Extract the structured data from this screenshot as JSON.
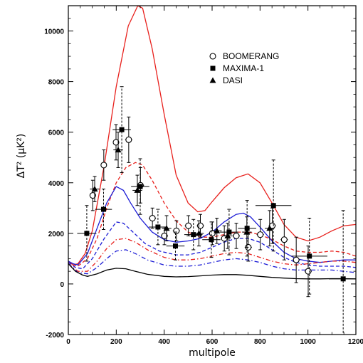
{
  "chart_data": {
    "type": "scatter",
    "xlabel": "multipole",
    "ylabel": "ΔT² (μK²)",
    "xlim": [
      0,
      1200
    ],
    "ylim": [
      -2000,
      11000
    ],
    "x_ticks": [
      0,
      200,
      400,
      600,
      800,
      1000,
      1200
    ],
    "y_ticks": [
      -2000,
      0,
      2000,
      4000,
      6000,
      8000,
      10000
    ],
    "x_tick_labels": [
      "0",
      "200",
      "400",
      "600",
      "800",
      "1000",
      "1200"
    ],
    "y_tick_labels": [
      "-2000",
      "0",
      "2000",
      "4000",
      "6000",
      "8000",
      "10000"
    ],
    "grid": false,
    "legend_position": "top-right",
    "legend": [
      {
        "label": "BOOMERANG",
        "marker": "open-circle"
      },
      {
        "label": "MAXIMA-1",
        "marker": "filled-square"
      },
      {
        "label": "DASI",
        "marker": "filled-triangle"
      }
    ],
    "data_series": [
      {
        "marker": "open-circle",
        "points": [
          {
            "x": 102,
            "y": 3500,
            "xerr": 12,
            "yerr": 600
          },
          {
            "x": 148,
            "y": 4700,
            "xerr": 12,
            "yerr": 600
          },
          {
            "x": 199,
            "y": 5600,
            "xerr": 12,
            "yerr": 700
          },
          {
            "x": 252,
            "y": 5700,
            "xerr": 15,
            "yerr": 900
          },
          {
            "x": 301,
            "y": 3900,
            "xerr": 15,
            "yerr": 700
          },
          {
            "x": 351,
            "y": 2600,
            "xerr": 15,
            "yerr": 400
          },
          {
            "x": 401,
            "y": 1900,
            "xerr": 15,
            "yerr": 350
          },
          {
            "x": 451,
            "y": 2100,
            "xerr": 15,
            "yerr": 400
          },
          {
            "x": 501,
            "y": 2300,
            "xerr": 15,
            "yerr": 400
          },
          {
            "x": 551,
            "y": 2300,
            "xerr": 15,
            "yerr": 450
          },
          {
            "x": 601,
            "y": 2000,
            "xerr": 15,
            "yerr": 450
          },
          {
            "x": 651,
            "y": 1800,
            "xerr": 15,
            "yerr": 500
          },
          {
            "x": 701,
            "y": 1900,
            "xerr": 15,
            "yerr": 500
          },
          {
            "x": 751,
            "y": 1450,
            "xerr": 15,
            "yerr": 550
          },
          {
            "x": 801,
            "y": 1950,
            "xerr": 15,
            "yerr": 600
          },
          {
            "x": 851,
            "y": 2300,
            "xerr": 15,
            "yerr": 700
          },
          {
            "x": 901,
            "y": 1750,
            "xerr": 15,
            "yerr": 800
          },
          {
            "x": 951,
            "y": 950,
            "xerr": 15,
            "yerr": 900
          },
          {
            "x": 1001,
            "y": 500,
            "xerr": 15,
            "yerr": 1000
          }
        ]
      },
      {
        "marker": "filled-square",
        "points": [
          {
            "x": 77,
            "y": 2000,
            "xerr": 40,
            "yerr": 1100
          },
          {
            "x": 147,
            "y": 2950,
            "xerr": 35,
            "yerr": 800
          },
          {
            "x": 223,
            "y": 6100,
            "xerr": 38,
            "yerr": 1700
          },
          {
            "x": 300,
            "y": 3850,
            "xerr": 38,
            "yerr": 1100
          },
          {
            "x": 374,
            "y": 2250,
            "xerr": 38,
            "yerr": 700
          },
          {
            "x": 447,
            "y": 1500,
            "xerr": 38,
            "yerr": 550
          },
          {
            "x": 522,
            "y": 1950,
            "xerr": 38,
            "yerr": 600
          },
          {
            "x": 597,
            "y": 1750,
            "xerr": 38,
            "yerr": 700
          },
          {
            "x": 671,
            "y": 2050,
            "xerr": 38,
            "yerr": 900
          },
          {
            "x": 746,
            "y": 2200,
            "xerr": 38,
            "yerr": 1100
          },
          {
            "x": 856,
            "y": 3100,
            "xerr": 75,
            "yerr": 1800
          },
          {
            "x": 1006,
            "y": 1100,
            "xerr": 75,
            "yerr": 1500
          },
          {
            "x": 1147,
            "y": 200,
            "xerr": 60,
            "yerr": 2700
          }
        ]
      },
      {
        "marker": "filled-triangle",
        "points": [
          {
            "x": 110,
            "y": 3750,
            "xerr": 20,
            "yerr": 500
          },
          {
            "x": 208,
            "y": 5300,
            "xerr": 20,
            "yerr": 700
          },
          {
            "x": 288,
            "y": 3700,
            "xerr": 20,
            "yerr": 600
          },
          {
            "x": 410,
            "y": 2200,
            "xerr": 20,
            "yerr": 500
          },
          {
            "x": 545,
            "y": 2000,
            "xerr": 20,
            "yerr": 500
          },
          {
            "x": 620,
            "y": 2100,
            "xerr": 20,
            "yerr": 500
          },
          {
            "x": 665,
            "y": 1900,
            "xerr": 20,
            "yerr": 500
          },
          {
            "x": 745,
            "y": 2050,
            "xerr": 20,
            "yerr": 600
          },
          {
            "x": 840,
            "y": 2200,
            "xerr": 20,
            "yerr": 700
          }
        ]
      }
    ],
    "curves": [
      {
        "color": "#e8201c",
        "dash": "solid",
        "points": [
          [
            0,
            900
          ],
          [
            20,
            750
          ],
          [
            40,
            800
          ],
          [
            70,
            1200
          ],
          [
            100,
            2100
          ],
          [
            150,
            4700
          ],
          [
            200,
            7800
          ],
          [
            250,
            10200
          ],
          [
            290,
            11000
          ],
          [
            310,
            10900
          ],
          [
            350,
            9300
          ],
          [
            400,
            6700
          ],
          [
            450,
            4300
          ],
          [
            500,
            3200
          ],
          [
            540,
            2850
          ],
          [
            570,
            2900
          ],
          [
            600,
            3250
          ],
          [
            650,
            3800
          ],
          [
            700,
            4200
          ],
          [
            750,
            4350
          ],
          [
            800,
            4000
          ],
          [
            850,
            3200
          ],
          [
            900,
            2350
          ],
          [
            950,
            1850
          ],
          [
            1000,
            1700
          ],
          [
            1050,
            1850
          ],
          [
            1100,
            2100
          ],
          [
            1150,
            2300
          ],
          [
            1200,
            2350
          ]
        ]
      },
      {
        "color": "#e8201c",
        "dash": "dashed",
        "points": [
          [
            0,
            900
          ],
          [
            20,
            750
          ],
          [
            40,
            700
          ],
          [
            80,
            1000
          ],
          [
            120,
            1800
          ],
          [
            160,
            3000
          ],
          [
            200,
            4000
          ],
          [
            240,
            4600
          ],
          [
            280,
            4800
          ],
          [
            310,
            4700
          ],
          [
            350,
            4100
          ],
          [
            400,
            3200
          ],
          [
            450,
            2500
          ],
          [
            500,
            2050
          ],
          [
            550,
            1850
          ],
          [
            600,
            1850
          ],
          [
            650,
            1950
          ],
          [
            700,
            2050
          ],
          [
            750,
            2050
          ],
          [
            800,
            1950
          ],
          [
            850,
            1750
          ],
          [
            900,
            1500
          ],
          [
            950,
            1300
          ],
          [
            1000,
            1250
          ],
          [
            1050,
            1250
          ],
          [
            1100,
            1300
          ],
          [
            1150,
            1250
          ],
          [
            1200,
            1100
          ]
        ]
      },
      {
        "color": "#1d1dd6",
        "dash": "solid",
        "points": [
          [
            0,
            900
          ],
          [
            20,
            800
          ],
          [
            40,
            750
          ],
          [
            80,
            1200
          ],
          [
            120,
            2200
          ],
          [
            160,
            3200
          ],
          [
            200,
            3850
          ],
          [
            230,
            3700
          ],
          [
            260,
            3200
          ],
          [
            300,
            2600
          ],
          [
            350,
            2050
          ],
          [
            400,
            1750
          ],
          [
            450,
            1650
          ],
          [
            500,
            1700
          ],
          [
            550,
            1800
          ],
          [
            600,
            2050
          ],
          [
            650,
            2450
          ],
          [
            700,
            2750
          ],
          [
            730,
            2800
          ],
          [
            760,
            2650
          ],
          [
            800,
            2250
          ],
          [
            850,
            1700
          ],
          [
            900,
            1250
          ],
          [
            950,
            1000
          ],
          [
            1000,
            900
          ],
          [
            1050,
            850
          ],
          [
            1100,
            900
          ],
          [
            1150,
            950
          ],
          [
            1200,
            950
          ]
        ]
      },
      {
        "color": "#1d1dd6",
        "dash": "dashed",
        "points": [
          [
            0,
            850
          ],
          [
            30,
            650
          ],
          [
            60,
            600
          ],
          [
            100,
            1000
          ],
          [
            150,
            1800
          ],
          [
            200,
            2450
          ],
          [
            230,
            2400
          ],
          [
            270,
            2050
          ],
          [
            320,
            1600
          ],
          [
            380,
            1300
          ],
          [
            450,
            1150
          ],
          [
            500,
            1150
          ],
          [
            550,
            1250
          ],
          [
            600,
            1450
          ],
          [
            650,
            1650
          ],
          [
            700,
            1800
          ],
          [
            750,
            1800
          ],
          [
            800,
            1650
          ],
          [
            850,
            1350
          ],
          [
            900,
            1050
          ],
          [
            950,
            850
          ],
          [
            1000,
            750
          ],
          [
            1050,
            700
          ],
          [
            1100,
            700
          ],
          [
            1150,
            700
          ],
          [
            1200,
            650
          ]
        ]
      },
      {
        "color": "#e8201c",
        "dash": "dashdot",
        "points": [
          [
            0,
            800
          ],
          [
            40,
            500
          ],
          [
            80,
            500
          ],
          [
            120,
            900
          ],
          [
            160,
            1400
          ],
          [
            200,
            1750
          ],
          [
            240,
            1800
          ],
          [
            280,
            1650
          ],
          [
            330,
            1350
          ],
          [
            400,
            1050
          ],
          [
            450,
            950
          ],
          [
            500,
            950
          ],
          [
            550,
            1000
          ],
          [
            600,
            1100
          ],
          [
            650,
            1200
          ],
          [
            700,
            1250
          ],
          [
            750,
            1200
          ],
          [
            800,
            1050
          ],
          [
            850,
            900
          ],
          [
            900,
            800
          ],
          [
            950,
            750
          ],
          [
            1000,
            800
          ],
          [
            1050,
            850
          ],
          [
            1100,
            900
          ],
          [
            1150,
            900
          ],
          [
            1200,
            850
          ]
        ]
      },
      {
        "color": "#1d1dd6",
        "dash": "dashdot",
        "points": [
          [
            0,
            800
          ],
          [
            40,
            450
          ],
          [
            80,
            400
          ],
          [
            120,
            650
          ],
          [
            160,
            1000
          ],
          [
            200,
            1300
          ],
          [
            240,
            1350
          ],
          [
            280,
            1200
          ],
          [
            330,
            950
          ],
          [
            400,
            750
          ],
          [
            450,
            700
          ],
          [
            500,
            700
          ],
          [
            550,
            750
          ],
          [
            600,
            850
          ],
          [
            650,
            950
          ],
          [
            700,
            1000
          ],
          [
            750,
            950
          ],
          [
            800,
            850
          ],
          [
            850,
            700
          ],
          [
            900,
            600
          ],
          [
            950,
            550
          ],
          [
            1000,
            550
          ],
          [
            1050,
            550
          ],
          [
            1100,
            550
          ],
          [
            1150,
            500
          ],
          [
            1200,
            450
          ]
        ]
      },
      {
        "color": "#000000",
        "dash": "solid",
        "points": [
          [
            0,
            800
          ],
          [
            30,
            500
          ],
          [
            60,
            350
          ],
          [
            80,
            300
          ],
          [
            120,
            400
          ],
          [
            160,
            550
          ],
          [
            200,
            620
          ],
          [
            240,
            600
          ],
          [
            280,
            500
          ],
          [
            330,
            380
          ],
          [
            400,
            300
          ],
          [
            450,
            280
          ],
          [
            500,
            290
          ],
          [
            550,
            320
          ],
          [
            600,
            350
          ],
          [
            650,
            370
          ],
          [
            700,
            370
          ],
          [
            750,
            340
          ],
          [
            800,
            300
          ],
          [
            850,
            260
          ],
          [
            900,
            230
          ],
          [
            950,
            210
          ],
          [
            1000,
            200
          ],
          [
            1050,
            200
          ],
          [
            1100,
            210
          ],
          [
            1150,
            210
          ],
          [
            1200,
            200
          ]
        ]
      }
    ]
  }
}
